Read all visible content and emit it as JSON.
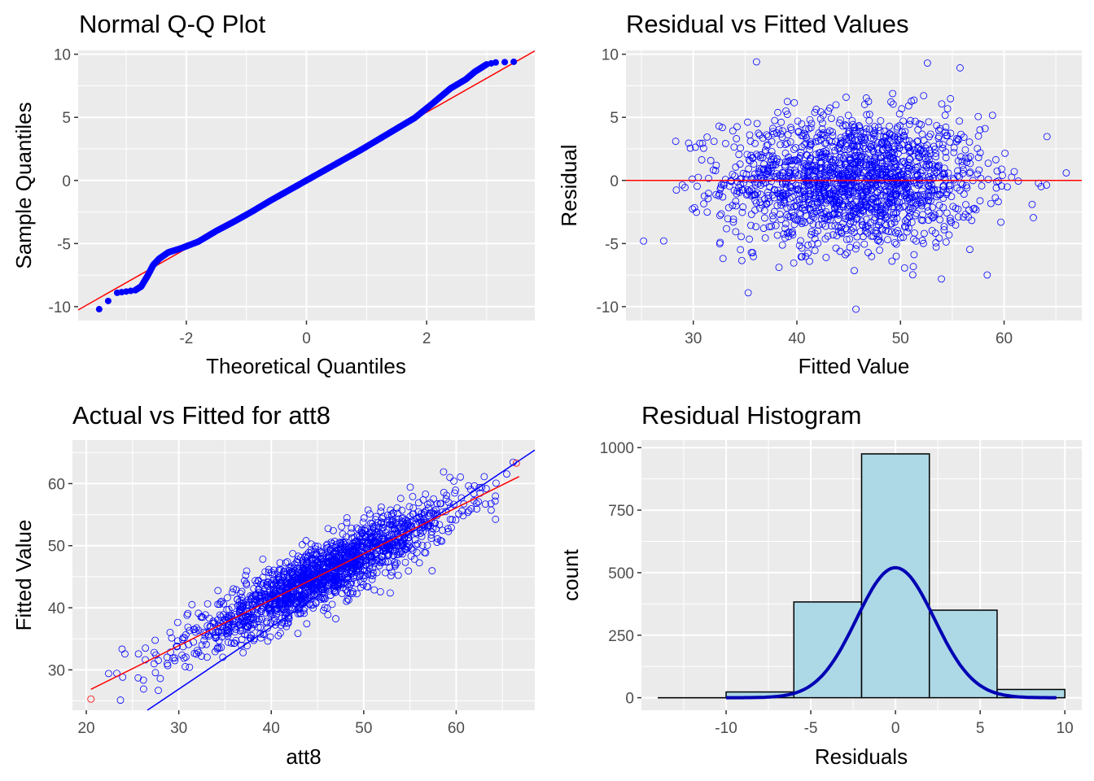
{
  "chart_data": [
    {
      "type": "scatter",
      "title": "Normal Q-Q Plot",
      "xlabel": "Theoretical Quantiles",
      "ylabel": "Sample Quantiles",
      "xlim": [
        -3.8,
        3.8
      ],
      "ylim": [
        -11.1,
        10.3
      ],
      "xticks": [
        -2,
        0,
        2
      ],
      "yticks": [
        -10,
        -5,
        0,
        5,
        10
      ],
      "grid": true,
      "points": [
        [
          -3.45,
          -10.2
        ],
        [
          -3.15,
          -8.9
        ],
        [
          -3.0,
          -8.8
        ],
        [
          -2.85,
          -8.7
        ],
        [
          -2.75,
          -8.4
        ],
        [
          -2.65,
          -7.6
        ],
        [
          -2.55,
          -6.7
        ],
        [
          -2.45,
          -6.2
        ],
        [
          -2.3,
          -5.7
        ],
        [
          -2.1,
          -5.4
        ],
        [
          -1.8,
          -4.85
        ],
        [
          -1.5,
          -4.0
        ],
        [
          -1.2,
          -3.25
        ],
        [
          -0.9,
          -2.45
        ],
        [
          -0.6,
          -1.6
        ],
        [
          -0.3,
          -0.8
        ],
        [
          0.0,
          0.0
        ],
        [
          0.3,
          0.8
        ],
        [
          0.6,
          1.6
        ],
        [
          0.9,
          2.4
        ],
        [
          1.2,
          3.25
        ],
        [
          1.5,
          4.1
        ],
        [
          1.8,
          4.95
        ],
        [
          2.1,
          6.1
        ],
        [
          2.4,
          7.3
        ],
        [
          2.65,
          8.0
        ],
        [
          2.8,
          8.6
        ],
        [
          3.0,
          9.2
        ],
        [
          3.15,
          9.35
        ],
        [
          3.45,
          9.4
        ]
      ],
      "reference_line": {
        "intercept": 0.0,
        "slope": 2.7,
        "color": "#ff0000"
      },
      "point_color": "#0000ff"
    },
    {
      "type": "scatter",
      "title": "Residual vs Fitted Values",
      "xlabel": "Fitted Value",
      "ylabel": "Residual",
      "xlim": [
        23.5,
        67.5
      ],
      "ylim": [
        -11.1,
        10.3
      ],
      "xticks": [
        30,
        40,
        50,
        60
      ],
      "yticks": [
        -10,
        -5,
        0,
        5,
        10
      ],
      "grid": true,
      "point_color": "#0000ff",
      "hline": {
        "y": 0,
        "color": "#ff0000"
      }
    },
    {
      "type": "scatter",
      "title": "Actual vs Fitted for att8",
      "xlabel": "att8",
      "ylabel": "Fitted Value",
      "xlim": [
        18.5,
        68.5
      ],
      "ylim": [
        23.5,
        67
      ],
      "xticks": [
        20,
        30,
        40,
        50,
        60
      ],
      "yticks": [
        30,
        40,
        50,
        60
      ],
      "grid": true,
      "point_color": "#0000ff",
      "lines": [
        {
          "color": "#ff0000",
          "intercept": 11.7,
          "slope": 0.74
        },
        {
          "color": "#0000ff",
          "intercept": -3.1,
          "slope": 1.0
        }
      ]
    },
    {
      "type": "bar",
      "title": "Residual Histogram",
      "xlabel": "Residuals",
      "ylabel": "count",
      "xlim": [
        -15,
        11
      ],
      "ylim": [
        -50,
        1030
      ],
      "xticks": [
        -10,
        -5,
        0,
        5,
        10
      ],
      "yticks": [
        0,
        250,
        500,
        750,
        1000
      ],
      "grid": true,
      "bins": [
        {
          "x0": -14,
          "x1": -10,
          "count": 0
        },
        {
          "x0": -10,
          "x1": -6,
          "count": 23
        },
        {
          "x0": -6,
          "x1": -2,
          "count": 383
        },
        {
          "x0": -2,
          "x1": 2,
          "count": 975
        },
        {
          "x0": 2,
          "x1": 6,
          "count": 350
        },
        {
          "x0": 6,
          "x1": 10,
          "count": 33
        }
      ],
      "bar_fill": "#add8e6",
      "bar_stroke": "#000000",
      "density_curve": {
        "color": "#0000b4",
        "mean": 0,
        "sd": 2.3,
        "peak": 520,
        "range": [
          -10,
          9.5
        ]
      }
    }
  ]
}
